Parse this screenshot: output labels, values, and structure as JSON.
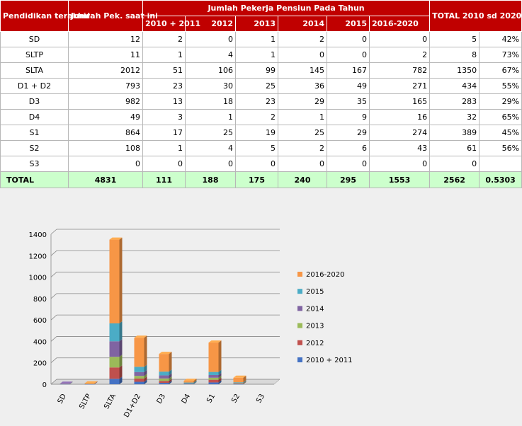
{
  "table": {
    "header_education": "Pendidikan terakhir",
    "header_current": "Jumlah Pek. saat ini",
    "header_group": "Jumlah Pekerja Pensiun Pada Tahun",
    "header_total": "TOTAL 2010 sd 2020",
    "year_headers": [
      "2010 + 2011",
      "2012",
      "2013",
      "2014",
      "2015",
      "2016-2020"
    ],
    "rows": [
      {
        "label": "SD",
        "current": "12",
        "y2010_2011": "2",
        "y2012": "0",
        "y2013": "1",
        "y2014": "2",
        "y2015": "0",
        "y2016_2020": "0",
        "total": "5",
        "pct": "42%"
      },
      {
        "label": "SLTP",
        "current": "11",
        "y2010_2011": "1",
        "y2012": "4",
        "y2013": "1",
        "y2014": "0",
        "y2015": "0",
        "y2016_2020": "2",
        "total": "8",
        "pct": "73%"
      },
      {
        "label": "SLTA",
        "current": "2012",
        "y2010_2011": "51",
        "y2012": "106",
        "y2013": "99",
        "y2014": "145",
        "y2015": "167",
        "y2016_2020": "782",
        "total": "1350",
        "pct": "67%"
      },
      {
        "label": "D1 + D2",
        "current": "793",
        "y2010_2011": "23",
        "y2012": "30",
        "y2013": "25",
        "y2014": "36",
        "y2015": "49",
        "y2016_2020": "271",
        "total": "434",
        "pct": "55%"
      },
      {
        "label": "D3",
        "current": "982",
        "y2010_2011": "13",
        "y2012": "18",
        "y2013": "23",
        "y2014": "29",
        "y2015": "35",
        "y2016_2020": "165",
        "total": "283",
        "pct": "29%"
      },
      {
        "label": "D4",
        "current": "49",
        "y2010_2011": "3",
        "y2012": "1",
        "y2013": "2",
        "y2014": "1",
        "y2015": "9",
        "y2016_2020": "16",
        "total": "32",
        "pct": "65%"
      },
      {
        "label": "S1",
        "current": "864",
        "y2010_2011": "17",
        "y2012": "25",
        "y2013": "19",
        "y2014": "25",
        "y2015": "29",
        "y2016_2020": "274",
        "total": "389",
        "pct": "45%"
      },
      {
        "label": "S2",
        "current": "108",
        "y2010_2011": "1",
        "y2012": "4",
        "y2013": "5",
        "y2014": "2",
        "y2015": "6",
        "y2016_2020": "43",
        "total": "61",
        "pct": "56%"
      },
      {
        "label": "S3",
        "current": "0",
        "y2010_2011": "0",
        "y2012": "0",
        "y2013": "0",
        "y2014": "0",
        "y2015": "0",
        "y2016_2020": "0",
        "total": "0",
        "pct": ""
      }
    ],
    "total_row": {
      "label": "TOTAL",
      "current": "4831",
      "y2010_2011": "111",
      "y2012": "188",
      "y2013": "175",
      "y2014": "240",
      "y2015": "295",
      "y2016_2020": "1553",
      "total": "2562",
      "pct": "0.5303"
    }
  },
  "chart_data": {
    "type": "bar",
    "stacked": true,
    "categories": [
      "SD",
      "SLTP",
      "SLTA",
      "D1+D2",
      "D3",
      "D4",
      "S1",
      "S2",
      "S3"
    ],
    "series": [
      {
        "name": "2010 + 2011",
        "color": "#4472c4",
        "values": [
          2,
          1,
          51,
          23,
          13,
          3,
          17,
          1,
          0
        ]
      },
      {
        "name": "2012",
        "color": "#c0504d",
        "values": [
          0,
          4,
          106,
          30,
          18,
          1,
          25,
          4,
          0
        ]
      },
      {
        "name": "2013",
        "color": "#9bbb59",
        "values": [
          1,
          1,
          99,
          25,
          23,
          2,
          19,
          5,
          0
        ]
      },
      {
        "name": "2014",
        "color": "#8064a2",
        "values": [
          2,
          0,
          145,
          36,
          29,
          1,
          25,
          2,
          0
        ]
      },
      {
        "name": "2015",
        "color": "#4bacc6",
        "values": [
          0,
          0,
          167,
          49,
          35,
          9,
          29,
          6,
          0
        ]
      },
      {
        "name": "2016-2020",
        "color": "#f79646",
        "values": [
          0,
          2,
          782,
          271,
          165,
          16,
          274,
          43,
          0
        ]
      }
    ],
    "yticks": [
      0,
      200,
      400,
      600,
      800,
      1000,
      1200,
      1400
    ],
    "ylim": [
      0,
      1400
    ],
    "grid": true,
    "legend_position": "right"
  }
}
